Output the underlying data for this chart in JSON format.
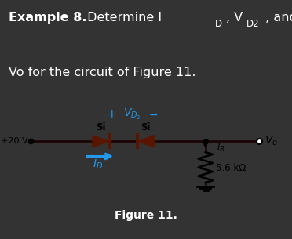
{
  "bg_color": "#333333",
  "box_facecolor": "#ffffff",
  "box_edgecolor": "#999999",
  "title_line1_bold": "Example 8.",
  "title_line1_rest": " Determine I",
  "title_line2": "Vo for the circuit of Figure 11.",
  "figure_caption": "Figure 11.",
  "diode_color": "#5a1500",
  "wire_color": "#1a0000",
  "cyan_color": "#2299ee",
  "black": "#000000",
  "white": "#ffffff",
  "text_white": "#ffffff"
}
